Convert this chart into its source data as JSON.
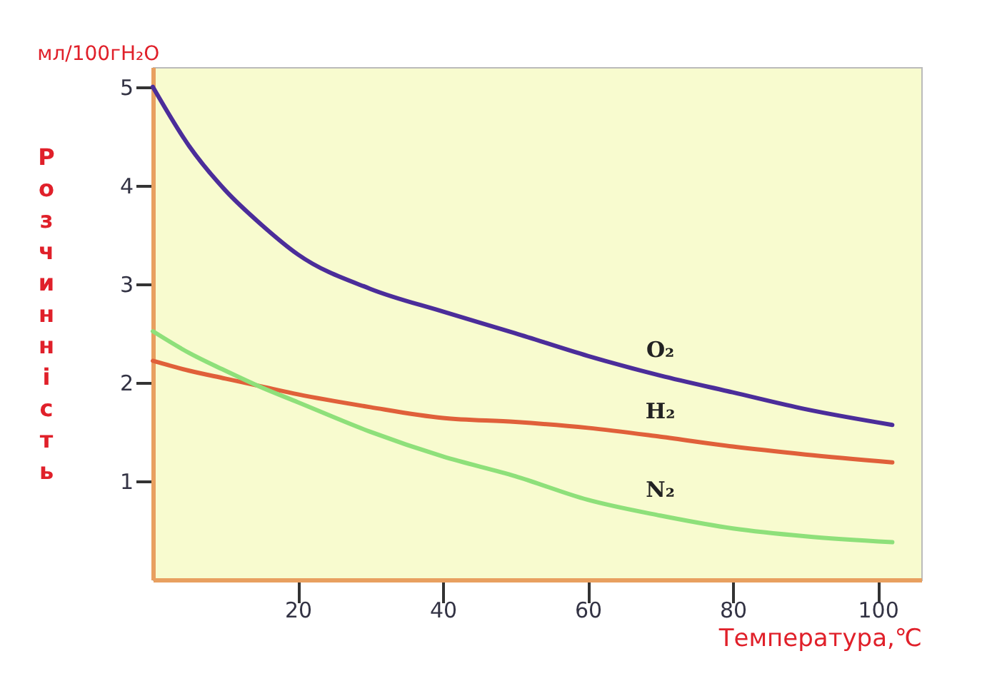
{
  "chart_data": {
    "type": "line",
    "xlabel": "Температура,℃",
    "ylabel": "Розчинність",
    "annotations": [
      "мл/100гH₂O"
    ],
    "x": [
      0,
      5,
      10,
      15,
      20,
      30,
      40,
      50,
      60,
      70,
      80,
      90,
      102
    ],
    "series": [
      {
        "name": "O₂",
        "color": "#4b2d9a",
        "values": [
          5.0,
          4.4,
          3.95,
          3.6,
          3.3,
          2.95,
          2.72,
          2.5,
          2.27,
          2.07,
          1.9,
          1.73,
          1.57
        ]
      },
      {
        "name": "H₂",
        "color": "#e0603a",
        "values": [
          2.22,
          2.12,
          2.04,
          1.96,
          1.88,
          1.75,
          1.64,
          1.6,
          1.54,
          1.45,
          1.35,
          1.27,
          1.19
        ]
      },
      {
        "name": "N₂",
        "color": "#8ee07a",
        "values": [
          2.52,
          2.3,
          2.12,
          1.95,
          1.8,
          1.5,
          1.25,
          1.05,
          0.81,
          0.65,
          0.52,
          0.44,
          0.38
        ]
      }
    ],
    "xlim": [
      0,
      106
    ],
    "xticks": [
      20,
      40,
      60,
      80,
      100
    ],
    "ylim": [
      0,
      5.2
    ],
    "yticks": [
      1,
      2,
      3,
      4,
      5
    ],
    "grid": false,
    "legend": false,
    "marker": "none",
    "line_style": "solid"
  }
}
